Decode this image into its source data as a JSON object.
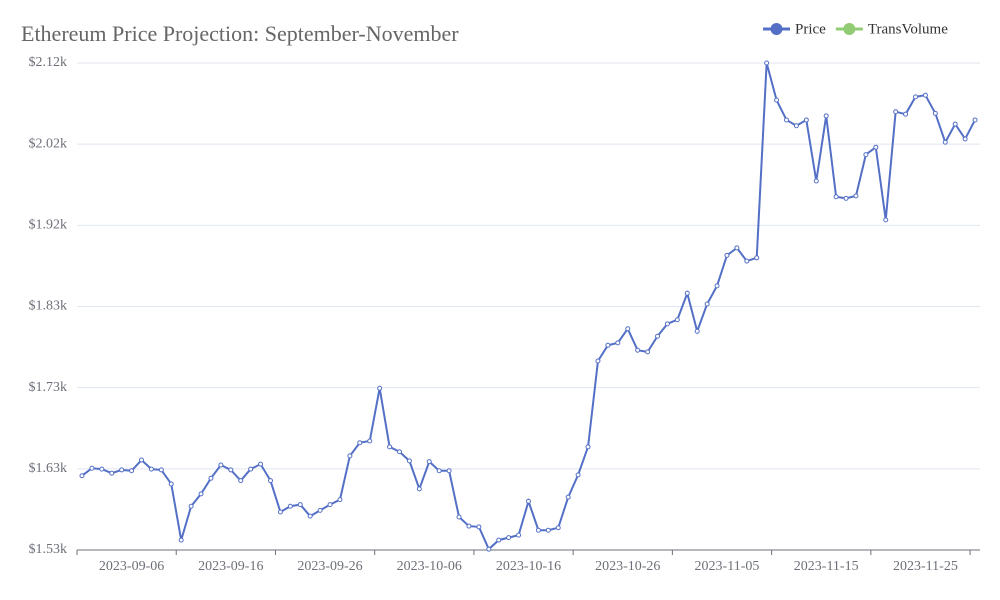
{
  "chart_data": {
    "type": "line",
    "title": "Ethereum Price Projection: September-November",
    "categories": [
      null,
      null,
      null,
      null,
      null,
      "2023-09-06",
      null,
      null,
      null,
      null,
      null,
      null,
      null,
      null,
      null,
      "2023-09-16",
      null,
      null,
      null,
      null,
      null,
      null,
      null,
      null,
      null,
      "2023-09-26",
      null,
      null,
      null,
      null,
      null,
      null,
      null,
      null,
      null,
      "2023-10-06",
      null,
      null,
      null,
      null,
      null,
      null,
      null,
      null,
      null,
      "2023-10-16",
      null,
      null,
      null,
      null,
      null,
      null,
      null,
      null,
      null,
      "2023-10-26",
      null,
      null,
      null,
      null,
      null,
      null,
      null,
      null,
      null,
      "2023-11-05",
      null,
      null,
      null,
      null,
      null,
      null,
      null,
      null,
      null,
      "2023-11-15",
      null,
      null,
      null,
      null,
      null,
      null,
      null,
      null,
      null,
      "2023-11-25",
      null,
      null,
      null,
      null,
      null
    ],
    "series": [
      {
        "name": "Price",
        "color": "#5470c6",
        "values": [
          1620,
          1629,
          1628,
          1623,
          1627,
          1626,
          1639,
          1628,
          1627,
          1610,
          1542,
          1583,
          1598,
          1617,
          1633,
          1627,
          1614,
          1628,
          1634,
          1614,
          1576,
          1583,
          1585,
          1571,
          1578,
          1585,
          1591,
          1644,
          1660,
          1662,
          1726,
          1655,
          1649,
          1638,
          1604,
          1637,
          1626,
          1626,
          1570,
          1559,
          1558,
          1531,
          1542,
          1545,
          1548,
          1589,
          1554,
          1554,
          1557,
          1594,
          1621,
          1655,
          1759,
          1778,
          1781,
          1798,
          1772,
          1770,
          1789,
          1804,
          1809,
          1841,
          1795,
          1828,
          1850,
          1887,
          1896,
          1880,
          1884,
          2120,
          2075,
          2051,
          2044,
          2051,
          1977,
          2056,
          1958,
          1956,
          1959,
          2009,
          2018,
          1930,
          2061,
          2058,
          2079,
          2081,
          2059,
          2024,
          2046,
          2028,
          2051
        ]
      }
    ],
    "legend_only_series": [
      {
        "name": "TransVolume",
        "color": "#91cc75"
      }
    ],
    "ylim": [
      1530,
      2120
    ],
    "yticks": [
      {
        "value": 1530,
        "label": "$1.53k"
      },
      {
        "value": 1628.33,
        "label": "$1.63k"
      },
      {
        "value": 1726.67,
        "label": "$1.73k"
      },
      {
        "value": 1825,
        "label": "$1.83k"
      },
      {
        "value": 1923.33,
        "label": "$1.92k"
      },
      {
        "value": 2021.67,
        "label": "$2.02k"
      },
      {
        "value": 2120,
        "label": "$2.12k"
      }
    ],
    "grid": true,
    "legend_position": "top-right"
  }
}
